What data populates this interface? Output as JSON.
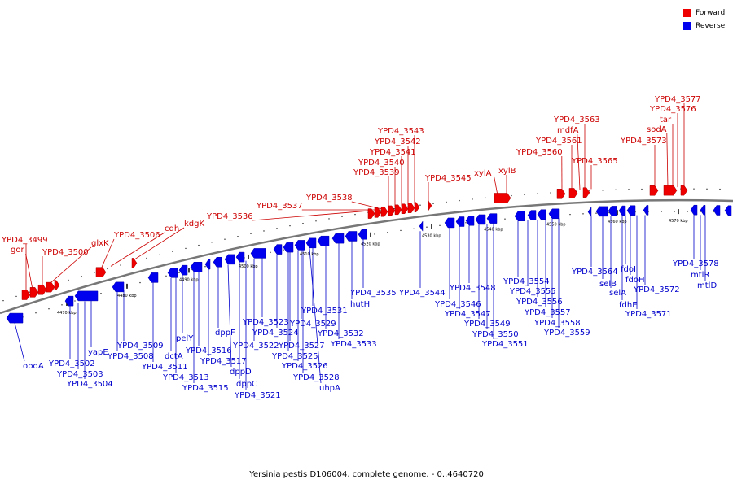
{
  "legend": {
    "forward_label": "Forward",
    "reverse_label": "Reverse",
    "forward_color": "#ee0000",
    "reverse_color": "#0000ee"
  },
  "caption": "Yersinia pestis D106004, complete genome. - 0..4640720",
  "kbp_ticks": [
    "4470 kbp",
    "4480 kbp",
    "4490 kbp",
    "4500 kbp",
    "4510 kbp",
    "4520 kbp",
    "4530 kbp",
    "4540 kbp",
    "4550 kbp",
    "4560 kbp",
    "4570 kbp"
  ],
  "forward_labels": [
    "YPD4_3499",
    "gor",
    "YPD4_3500",
    "glxK",
    "YPD4_3506",
    "cdh",
    "kdgK",
    "YPD4_3536",
    "YPD4_3537",
    "YPD4_3538",
    "YPD4_3539",
    "YPD4_3540",
    "YPD4_3541",
    "YPD4_3542",
    "YPD4_3543",
    "YPD4_3545",
    "xylA",
    "xylB",
    "YPD4_3560",
    "YPD4_3561",
    "mdfA",
    "YPD4_3563",
    "YPD4_3565",
    "YPD4_3573",
    "sodA",
    "tar",
    "YPD4_3576",
    "YPD4_3577"
  ],
  "reverse_labels": [
    "opdA",
    "YPD4_3502",
    "YPD4_3503",
    "YPD4_3504",
    "yapE",
    "YPD4_3508",
    "YPD4_3509",
    "YPD4_3511",
    "dctA",
    "pelY",
    "YPD4_3513",
    "YPD4_3515",
    "YPD4_3516",
    "YPD4_3517",
    "dppF",
    "dppD",
    "dppC",
    "YPD4_3521",
    "YPD4_3522",
    "YPD4_3523",
    "YPD4_3524",
    "YPD4_3525",
    "YPD4_3526",
    "YPD4_3527",
    "YPD4_3528",
    "uhpA",
    "YPD4_3529",
    "YPD4_3531",
    "YPD4_3532",
    "YPD4_3533",
    "hutH",
    "YPD4_3535",
    "YPD4_3544",
    "YPD4_3546",
    "YPD4_3547",
    "YPD4_3548",
    "YPD4_3549",
    "YPD4_3550",
    "YPD4_3551",
    "YPD4_3554",
    "YPD4_3555",
    "YPD4_3556",
    "YPD4_3557",
    "YPD4_3558",
    "YPD4_3559",
    "YPD4_3564",
    "selB",
    "selA",
    "fdhE",
    "fdoI",
    "fdoH",
    "YPD4_3571",
    "YPD4_3572",
    "YPD4_3578",
    "mtlR",
    "mtlD"
  ]
}
